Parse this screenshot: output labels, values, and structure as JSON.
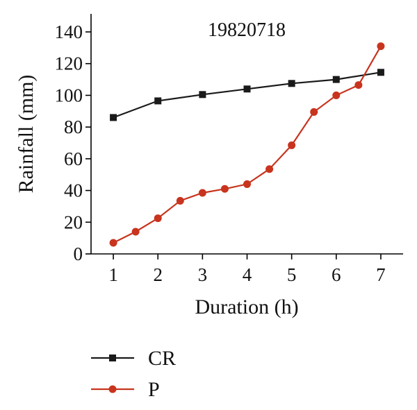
{
  "chart_data": {
    "type": "line",
    "title": "19820718",
    "xlabel": "Duration (h)",
    "ylabel": "Rainfall (mm)",
    "xlim": [
      0.5,
      7.5
    ],
    "ylim": [
      0,
      140
    ],
    "xticks": [
      1,
      2,
      3,
      4,
      5,
      6,
      7
    ],
    "yticks": [
      0,
      20,
      40,
      60,
      80,
      100,
      120,
      140
    ],
    "grid": false,
    "legend": "bottom-left",
    "series": [
      {
        "name": "CR",
        "color": "#1a1a1a",
        "marker": "square",
        "x": [
          1,
          2,
          3,
          4,
          5,
          6,
          7
        ],
        "y": [
          86,
          96.5,
          100.5,
          104,
          107.5,
          110,
          114.5
        ]
      },
      {
        "name": "P",
        "color": "#c8341e",
        "marker": "circle",
        "x": [
          1,
          1.5,
          2,
          2.5,
          3,
          3.5,
          4,
          4.5,
          5,
          5.5,
          6,
          6.5,
          7
        ],
        "y": [
          7,
          14,
          22.5,
          33.5,
          38.5,
          41,
          44,
          53.5,
          68.5,
          89.5,
          100,
          106.5,
          131
        ]
      }
    ]
  }
}
